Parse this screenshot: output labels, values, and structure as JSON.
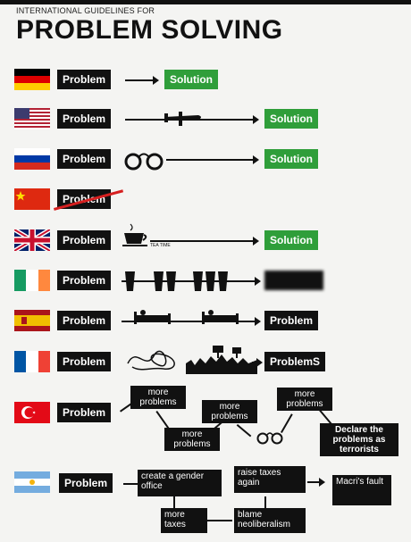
{
  "header": {
    "subtitle": "INTERNATIONAL GUIDELINES FOR",
    "title": "PROBLEM SOLVING"
  },
  "rows": [
    {
      "country": "germany",
      "problem": "Problem",
      "result": "Solution"
    },
    {
      "country": "usa",
      "problem": "Problem",
      "result": "Solution"
    },
    {
      "country": "russia",
      "problem": "Problem",
      "result": "Solution"
    },
    {
      "country": "china",
      "problem": "Problem"
    },
    {
      "country": "uk",
      "problem": "Problem",
      "teatime_label": "TEA TIME",
      "result": "Solution"
    },
    {
      "country": "ireland",
      "problem": "Problem"
    },
    {
      "country": "spain",
      "problem": "Problem",
      "result": "Problem"
    },
    {
      "country": "france",
      "problem": "Problem",
      "result": "ProblemS"
    },
    {
      "country": "turkey",
      "problem": "Problem",
      "more1": "more problems",
      "more2": "more problems",
      "more3": "more problems",
      "more4": "more problems",
      "result": "Declare the problems as terrorists"
    },
    {
      "country": "argentina",
      "problem": "Problem",
      "step1": "create a gender office",
      "step2": "more taxes",
      "step3": "raise taxes again",
      "step4": "blame neoliberalism",
      "result": "Macri's fault"
    }
  ],
  "colors": {
    "solution_green": "#2f9e3a",
    "box_black": "#111111",
    "background": "#f4f4f2"
  }
}
